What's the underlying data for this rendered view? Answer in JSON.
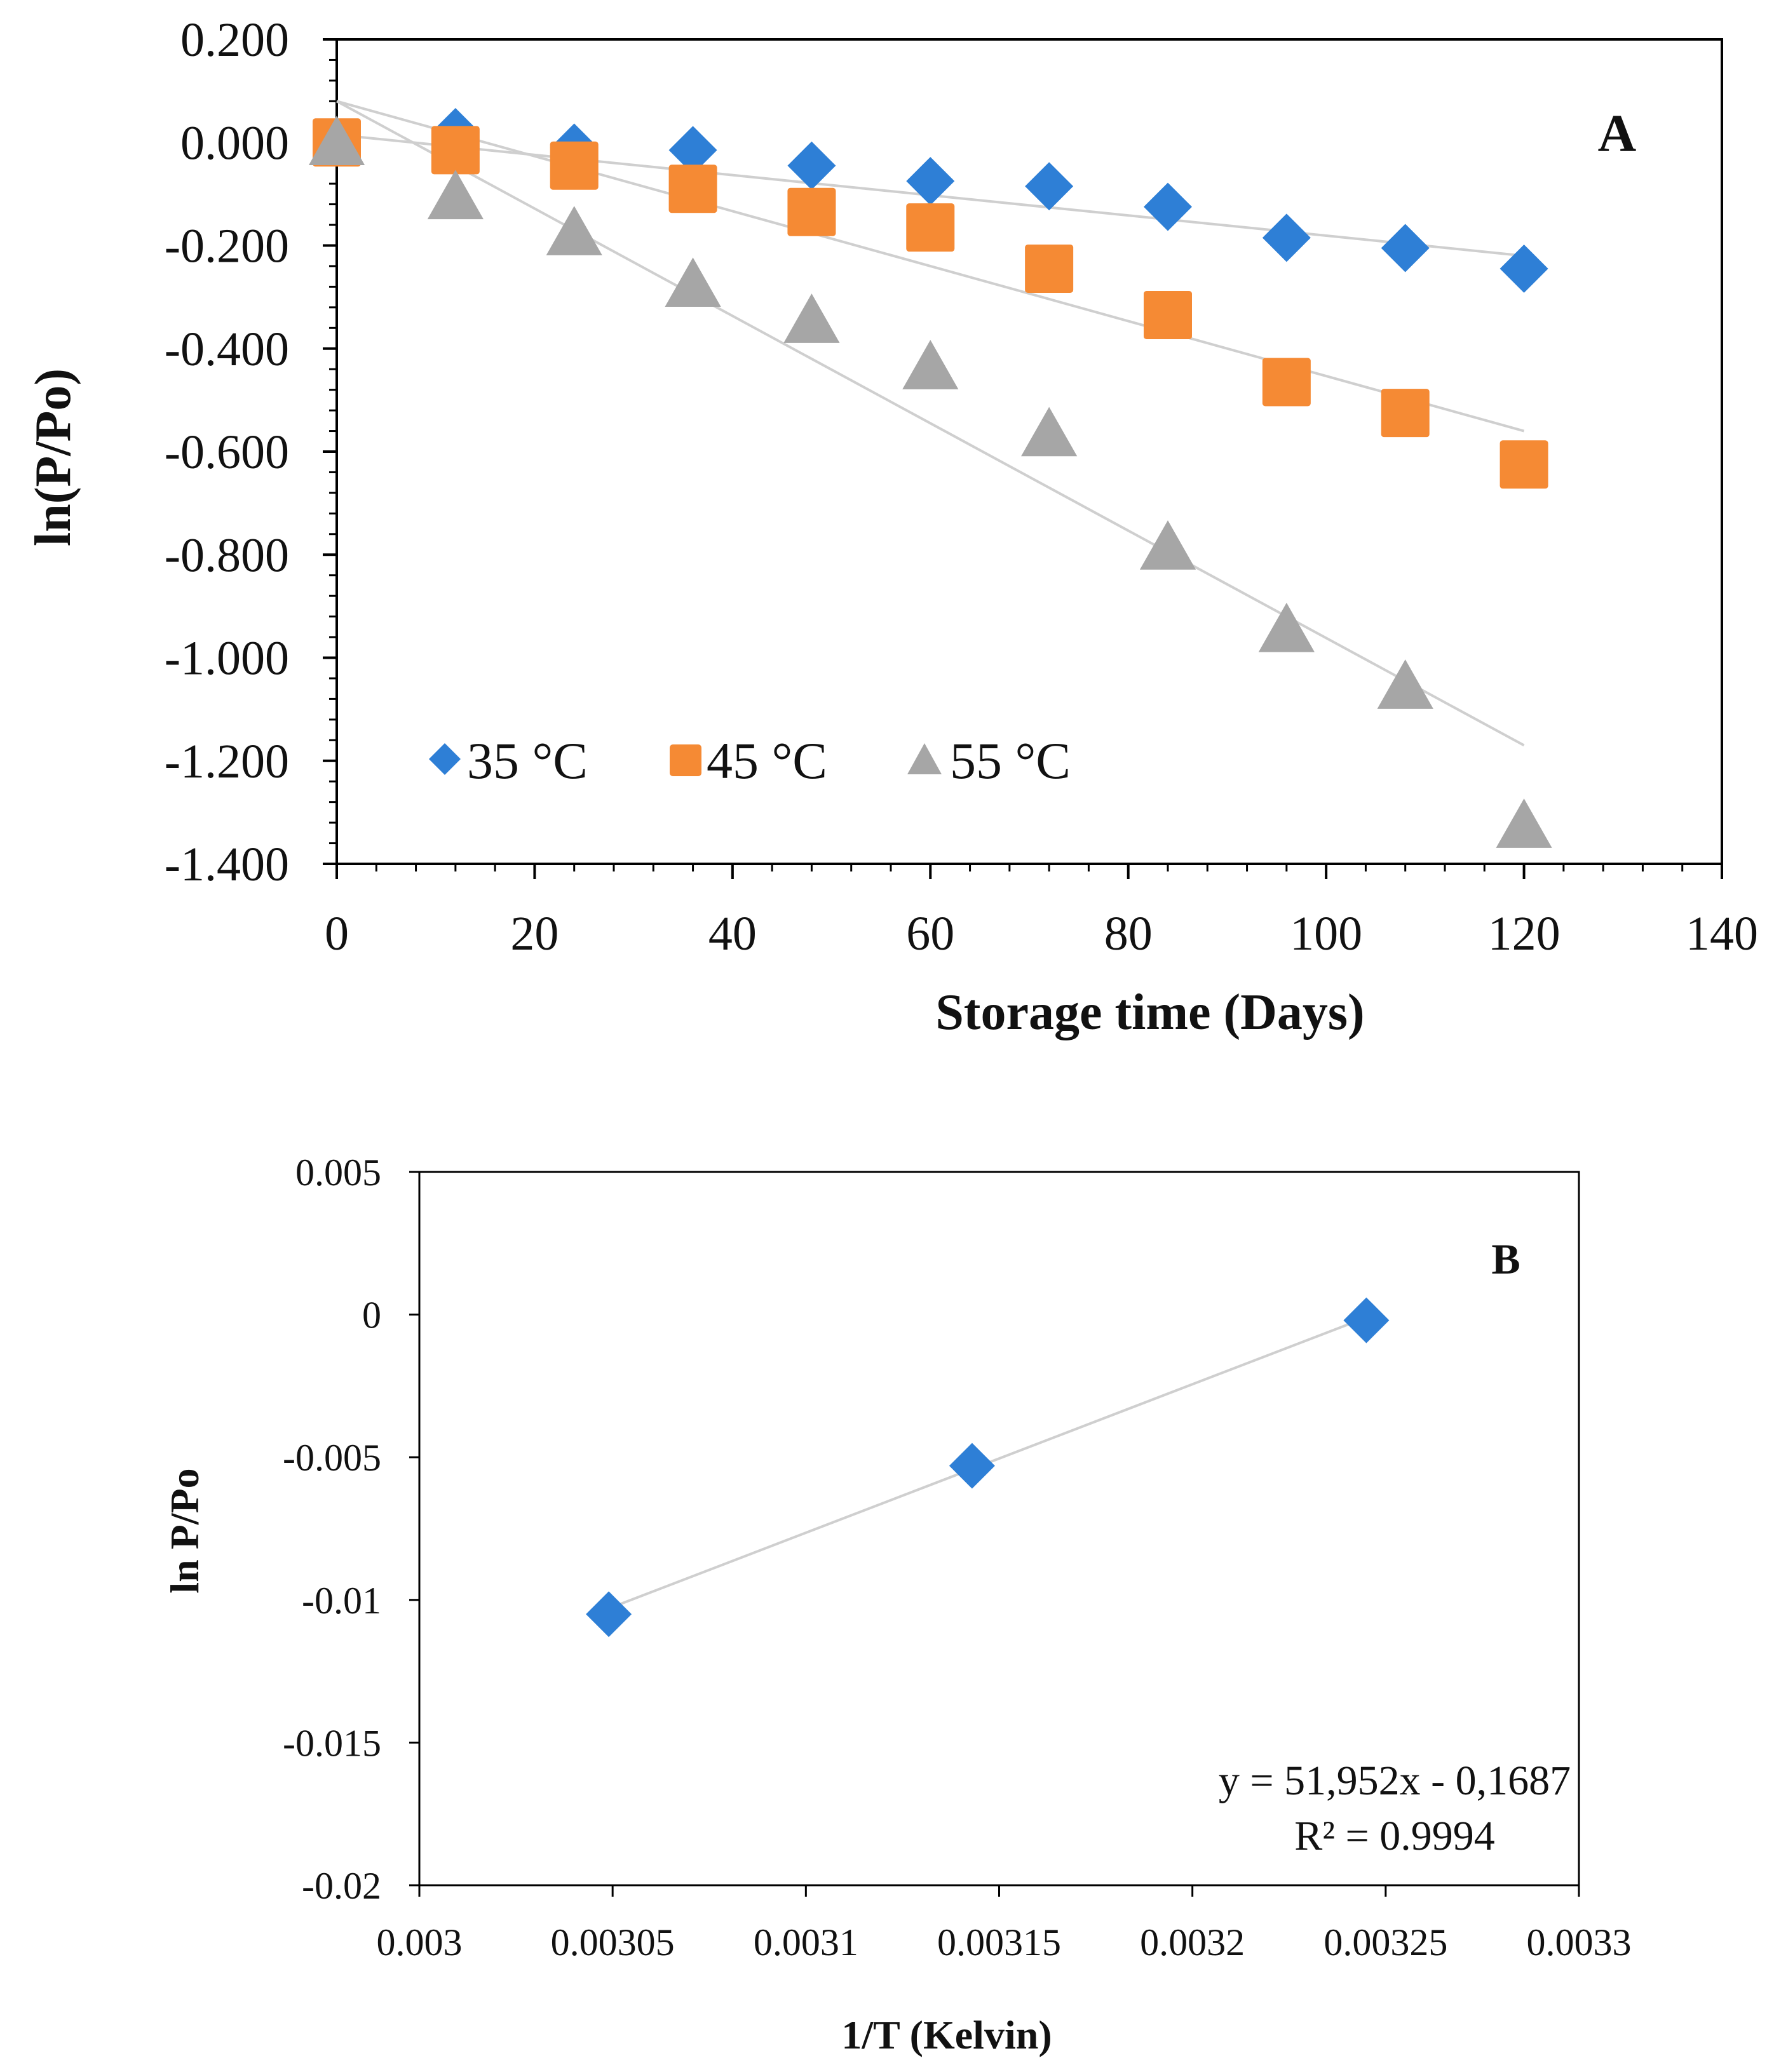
{
  "chart_data": [
    {
      "type": "scatter",
      "panel_label": "A",
      "xlabel": "Storage time (Days)",
      "ylabel": "ln(P/Po)",
      "xlim": [
        0,
        140
      ],
      "ylim": [
        -1.4,
        0.2
      ],
      "xticks": [
        "0",
        "20",
        "40",
        "60",
        "80",
        "100",
        "120",
        "140"
      ],
      "yticks": [
        "0.200",
        "0.000",
        "-0.200",
        "-0.400",
        "-0.600",
        "-0.800",
        "-1.000",
        "-1.200",
        "-1.400"
      ],
      "legend_position": "bottom-left",
      "grid": false,
      "series": [
        {
          "name": "35 °C",
          "marker": "diamond",
          "color": "#2E7FD6",
          "x": [
            0,
            12,
            24,
            36,
            48,
            60,
            72,
            84,
            96,
            108,
            120
          ],
          "y": [
            0.0,
            0.02,
            -0.01,
            -0.015,
            -0.045,
            -0.075,
            -0.085,
            -0.125,
            -0.185,
            -0.205,
            -0.245
          ],
          "trendline": {
            "x": [
              0,
              120
            ],
            "y": [
              0.015,
              -0.22
            ]
          }
        },
        {
          "name": "45 °C",
          "marker": "square",
          "color": "#F58A34",
          "x": [
            0,
            12,
            24,
            36,
            48,
            60,
            72,
            84,
            96,
            108,
            120
          ],
          "y": [
            0.0,
            -0.015,
            -0.045,
            -0.09,
            -0.135,
            -0.165,
            -0.245,
            -0.335,
            -0.465,
            -0.525,
            -0.625
          ],
          "trendline": {
            "x": [
              0,
              120
            ],
            "y": [
              0.08,
              -0.56
            ]
          }
        },
        {
          "name": "55 °C",
          "marker": "triangle",
          "color": "#A6A6A6",
          "x": [
            0,
            12,
            24,
            36,
            48,
            60,
            72,
            84,
            96,
            108,
            120
          ],
          "y": [
            0.0,
            -0.105,
            -0.175,
            -0.275,
            -0.345,
            -0.435,
            -0.565,
            -0.785,
            -0.945,
            -1.055,
            -1.325
          ],
          "trendline": {
            "x": [
              0,
              120
            ],
            "y": [
              0.08,
              -1.17
            ]
          }
        }
      ]
    },
    {
      "type": "scatter",
      "panel_label": "B",
      "xlabel": "1/T (Kelvin)",
      "ylabel": "ln P/Po",
      "xlim": [
        0.003,
        0.0033
      ],
      "ylim": [
        -0.02,
        0.005
      ],
      "xticks": [
        "0.003",
        "0.00305",
        "0.0031",
        "0.00315",
        "0.0032",
        "0.00325",
        "0.0033"
      ],
      "yticks": [
        "0.005",
        "0",
        "-0.005",
        "-0.01",
        "-0.015",
        "-0.02"
      ],
      "grid": false,
      "series": [
        {
          "name": "ln P/Po",
          "marker": "diamond",
          "color": "#2E7FD6",
          "x": [
            0.003049,
            0.003143,
            0.003245
          ],
          "y": [
            -0.0105,
            -0.0053,
            -0.0002
          ],
          "trendline": {
            "x": [
              0.003049,
              0.003245
            ],
            "y": [
              -0.0103,
              -0.0001
            ]
          }
        }
      ],
      "equation": "y = 51,952x - 0,1687",
      "r_squared": "R² = 0.9994"
    }
  ]
}
